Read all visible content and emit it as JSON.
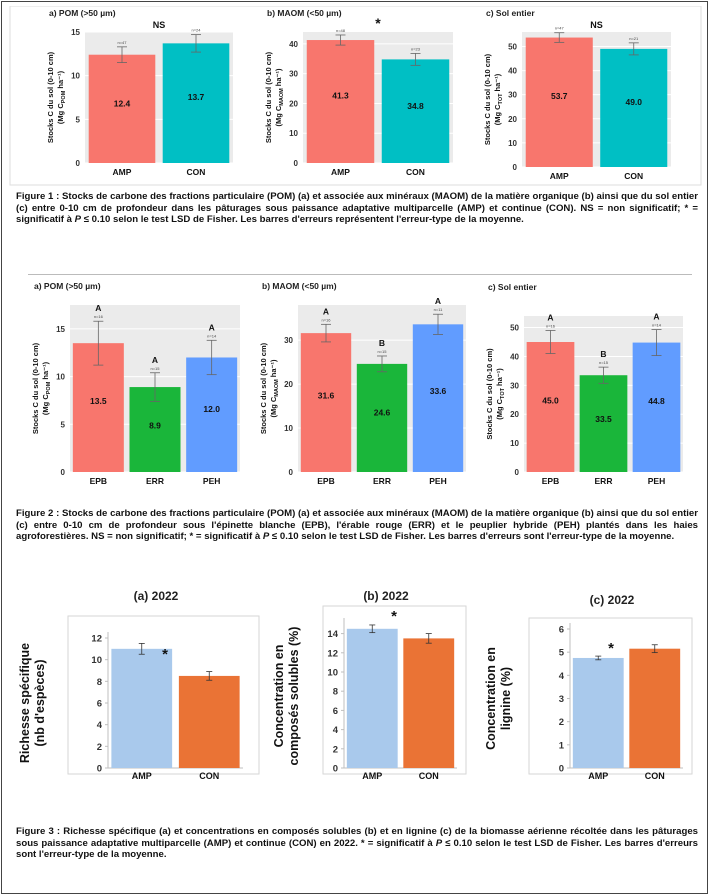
{
  "colors": {
    "amp": "#f8766d",
    "con": "#00bfc4",
    "epb": "#f8766d",
    "err": "#1ab63a",
    "peh": "#619cff",
    "amp3": "#a9c9ec",
    "con3": "#ea7335"
  },
  "captions": [
    {
      "label": "Figure 1 :",
      "pre": "Stocks de carbone des fractions particulaire (POM) (a) et associée aux minéraux (MAOM) de la matière organique (b) ainsi que du sol entier (c) entre 0-10 cm de profondeur dans les pâturages sous paissance adaptative multiparcelle (AMP) et continue (CON). NS = non significatif; * = significatif à",
      "p": "P",
      "post": "≤ 0.10 selon le test LSD de Fisher. Les barres d'erreurs représentent l'erreur-type de la moyenne."
    },
    {
      "label": "Figure 2 :",
      "pre": "Stocks de carbone des fractions particulaire (POM) (a) et associée aux minéraux (MAOM) de la matière organique (b) ainsi que du sol entier (c) entre 0-10 cm de profondeur sous l'épinette blanche (EPB), l'érable rouge (ERR) et le peuplier hybride (PEH) plantés dans les haies agroforestières. NS = non significatif; * = significatif à",
      "p": "P",
      "post": "≤ 0.10 selon le test LSD de Fisher. Les barres d'erreurs sont l'erreur-type de la moyenne."
    },
    {
      "label": "Figure 3 :",
      "pre": "Richesse spécifique (a) et concentrations en composés solubles (b) et en lignine (c) de la biomasse aérienne récoltée dans les pâturages sous paissance adaptative multiparcelle (AMP) et continue (CON) en 2022. * = significatif à",
      "p": "P",
      "post": "≤ 0.10 selon le test LSD de Fisher. Les barres d'erreurs sont l'erreur-type de la moyenne."
    }
  ],
  "chart_data": [
    {
      "id": "f1a",
      "type": "bar",
      "title": "a) POM (>50 µm)",
      "sig": "NS",
      "ylabel": "Stocks C du sol (0-10 cm)",
      "ylabel2": "(Mg C",
      "ylabel_sub": "POM",
      "ylabel_end": " ha⁻¹)",
      "ylim": [
        0,
        15
      ],
      "ticks": [
        0,
        5,
        10,
        15
      ],
      "categories": [
        "AMP",
        "CON"
      ],
      "values": [
        12.4,
        13.7
      ],
      "errors": [
        0.9,
        1.0
      ],
      "value_labels": [
        "12.4",
        "13.7"
      ],
      "letters": [
        "",
        ""
      ],
      "ns": [
        "n=47",
        "n=24"
      ],
      "colors": [
        "amp",
        "con"
      ]
    },
    {
      "id": "f1b",
      "type": "bar",
      "title": "b) MAOM (<50 µm)",
      "sig": "*",
      "ylabel": "Stocks C du sol (0-10 cm)",
      "ylabel2": "(Mg C",
      "ylabel_sub": "MAOM",
      "ylabel_end": " ha⁻¹)",
      "ylim": [
        0,
        44
      ],
      "ticks": [
        0,
        10,
        20,
        30,
        40
      ],
      "categories": [
        "AMP",
        "CON"
      ],
      "values": [
        41.3,
        34.8
      ],
      "errors": [
        1.7,
        2.0
      ],
      "value_labels": [
        "41.3",
        "34.8"
      ],
      "letters": [
        "",
        ""
      ],
      "ns": [
        "n=48",
        "n=23"
      ],
      "colors": [
        "amp",
        "con"
      ]
    },
    {
      "id": "f1c",
      "type": "bar",
      "title": "c) Sol entier",
      "sig": "NS",
      "ylabel": "Stocks C du sol (0-10 cm)",
      "ylabel2": "(Mg C",
      "ylabel_sub": "TOT",
      "ylabel_end": " ha⁻¹)",
      "ylim": [
        0,
        56
      ],
      "ticks": [
        0,
        10,
        20,
        30,
        40,
        50
      ],
      "categories": [
        "AMP",
        "CON"
      ],
      "values": [
        53.7,
        49.0
      ],
      "errors": [
        2.0,
        2.5
      ],
      "value_labels": [
        "53.7",
        "49.0"
      ],
      "letters": [
        "",
        ""
      ],
      "ns": [
        "n=47",
        "n=21"
      ],
      "colors": [
        "amp",
        "con"
      ]
    },
    {
      "id": "f2a",
      "type": "bar",
      "title": "a) POM (>50 µm)",
      "sig": "",
      "ylabel": "Stocks C du sol (0-10 cm)",
      "ylabel2": "(Mg C",
      "ylabel_sub": "POM",
      "ylabel_end": " ha⁻¹)",
      "ylim": [
        0,
        17.5
      ],
      "ticks": [
        0,
        5,
        10,
        15
      ],
      "categories": [
        "EPB",
        "ERR",
        "PEH"
      ],
      "values": [
        13.5,
        8.9,
        12.0
      ],
      "errors": [
        2.3,
        1.5,
        1.8
      ],
      "value_labels": [
        "13.5",
        "8.9",
        "12.0"
      ],
      "letters": [
        "A",
        "A",
        "A"
      ],
      "ns": [
        "n=16",
        "n=15",
        "n=14"
      ],
      "colors": [
        "epb",
        "err",
        "peh"
      ]
    },
    {
      "id": "f2b",
      "type": "bar",
      "title": "b) MAOM (<50 µm)",
      "sig": "",
      "ylabel": "Stocks C du sol (0-10 cm)",
      "ylabel2": "(Mg C",
      "ylabel_sub": "MAOM",
      "ylabel_end": " ha⁻¹)",
      "ylim": [
        0,
        38
      ],
      "ticks": [
        0,
        10,
        20,
        30
      ],
      "categories": [
        "EPB",
        "ERR",
        "PEH"
      ],
      "values": [
        31.6,
        24.6,
        33.6
      ],
      "errors": [
        2.0,
        1.8,
        2.3
      ],
      "value_labels": [
        "31.6",
        "24.6",
        "33.6"
      ],
      "letters": [
        "A",
        "B",
        "A"
      ],
      "ns": [
        "n=16",
        "n=15",
        "n=11"
      ],
      "colors": [
        "epb",
        "err",
        "peh"
      ]
    },
    {
      "id": "f2c",
      "type": "bar",
      "title": "c) Sol entier",
      "sig": "",
      "ylabel": "Stocks C du sol (0-10 cm)",
      "ylabel2": "(Mg C",
      "ylabel_sub": "TOT",
      "ylabel_end": " ha⁻¹)",
      "ylim": [
        0,
        54
      ],
      "ticks": [
        0,
        10,
        20,
        30,
        40,
        50
      ],
      "categories": [
        "EPB",
        "ERR",
        "PEH"
      ],
      "values": [
        45.0,
        33.5,
        44.8
      ],
      "errors": [
        4.0,
        2.8,
        4.5
      ],
      "value_labels": [
        "45.0",
        "33.5",
        "44.8"
      ],
      "letters": [
        "A",
        "B",
        "A"
      ],
      "ns": [
        "n=16",
        "n=15",
        "n=14"
      ],
      "colors": [
        "epb",
        "err",
        "peh"
      ]
    },
    {
      "id": "f3a",
      "type": "bar",
      "title": "(a) 2022",
      "sig": "*",
      "ylabel": "Richesse spécifique",
      "ylabel2": "(nb d'espèces)",
      "ylim": [
        0,
        12
      ],
      "ticks": [
        0,
        2,
        4,
        6,
        8,
        10,
        12
      ],
      "categories": [
        "AMP",
        "CON"
      ],
      "values": [
        11.0,
        8.5
      ],
      "errors": [
        0.5,
        0.4
      ],
      "colors": [
        "amp3",
        "con3"
      ]
    },
    {
      "id": "f3b",
      "type": "bar",
      "title": "(b) 2022",
      "sig": "*",
      "ylabel": "Concentration en",
      "ylabel2": "composés solubles (%)",
      "ylim": [
        0,
        15
      ],
      "ticks": [
        0,
        2,
        4,
        6,
        8,
        10,
        12,
        14
      ],
      "categories": [
        "AMP",
        "CON"
      ],
      "values": [
        14.5,
        13.5
      ],
      "errors": [
        0.4,
        0.5
      ],
      "colors": [
        "amp3",
        "con3"
      ]
    },
    {
      "id": "f3c",
      "type": "bar",
      "title": "(c) 2022",
      "sig": "*",
      "ylabel": "Concentration en",
      "ylabel2": "lignine (%)",
      "ylim": [
        0,
        6
      ],
      "ticks": [
        0,
        1,
        2,
        3,
        4,
        5,
        6
      ],
      "categories": [
        "AMP",
        "CON"
      ],
      "values": [
        4.75,
        5.15
      ],
      "errors": [
        0.08,
        0.17
      ],
      "colors": [
        "amp3",
        "con3"
      ]
    }
  ]
}
